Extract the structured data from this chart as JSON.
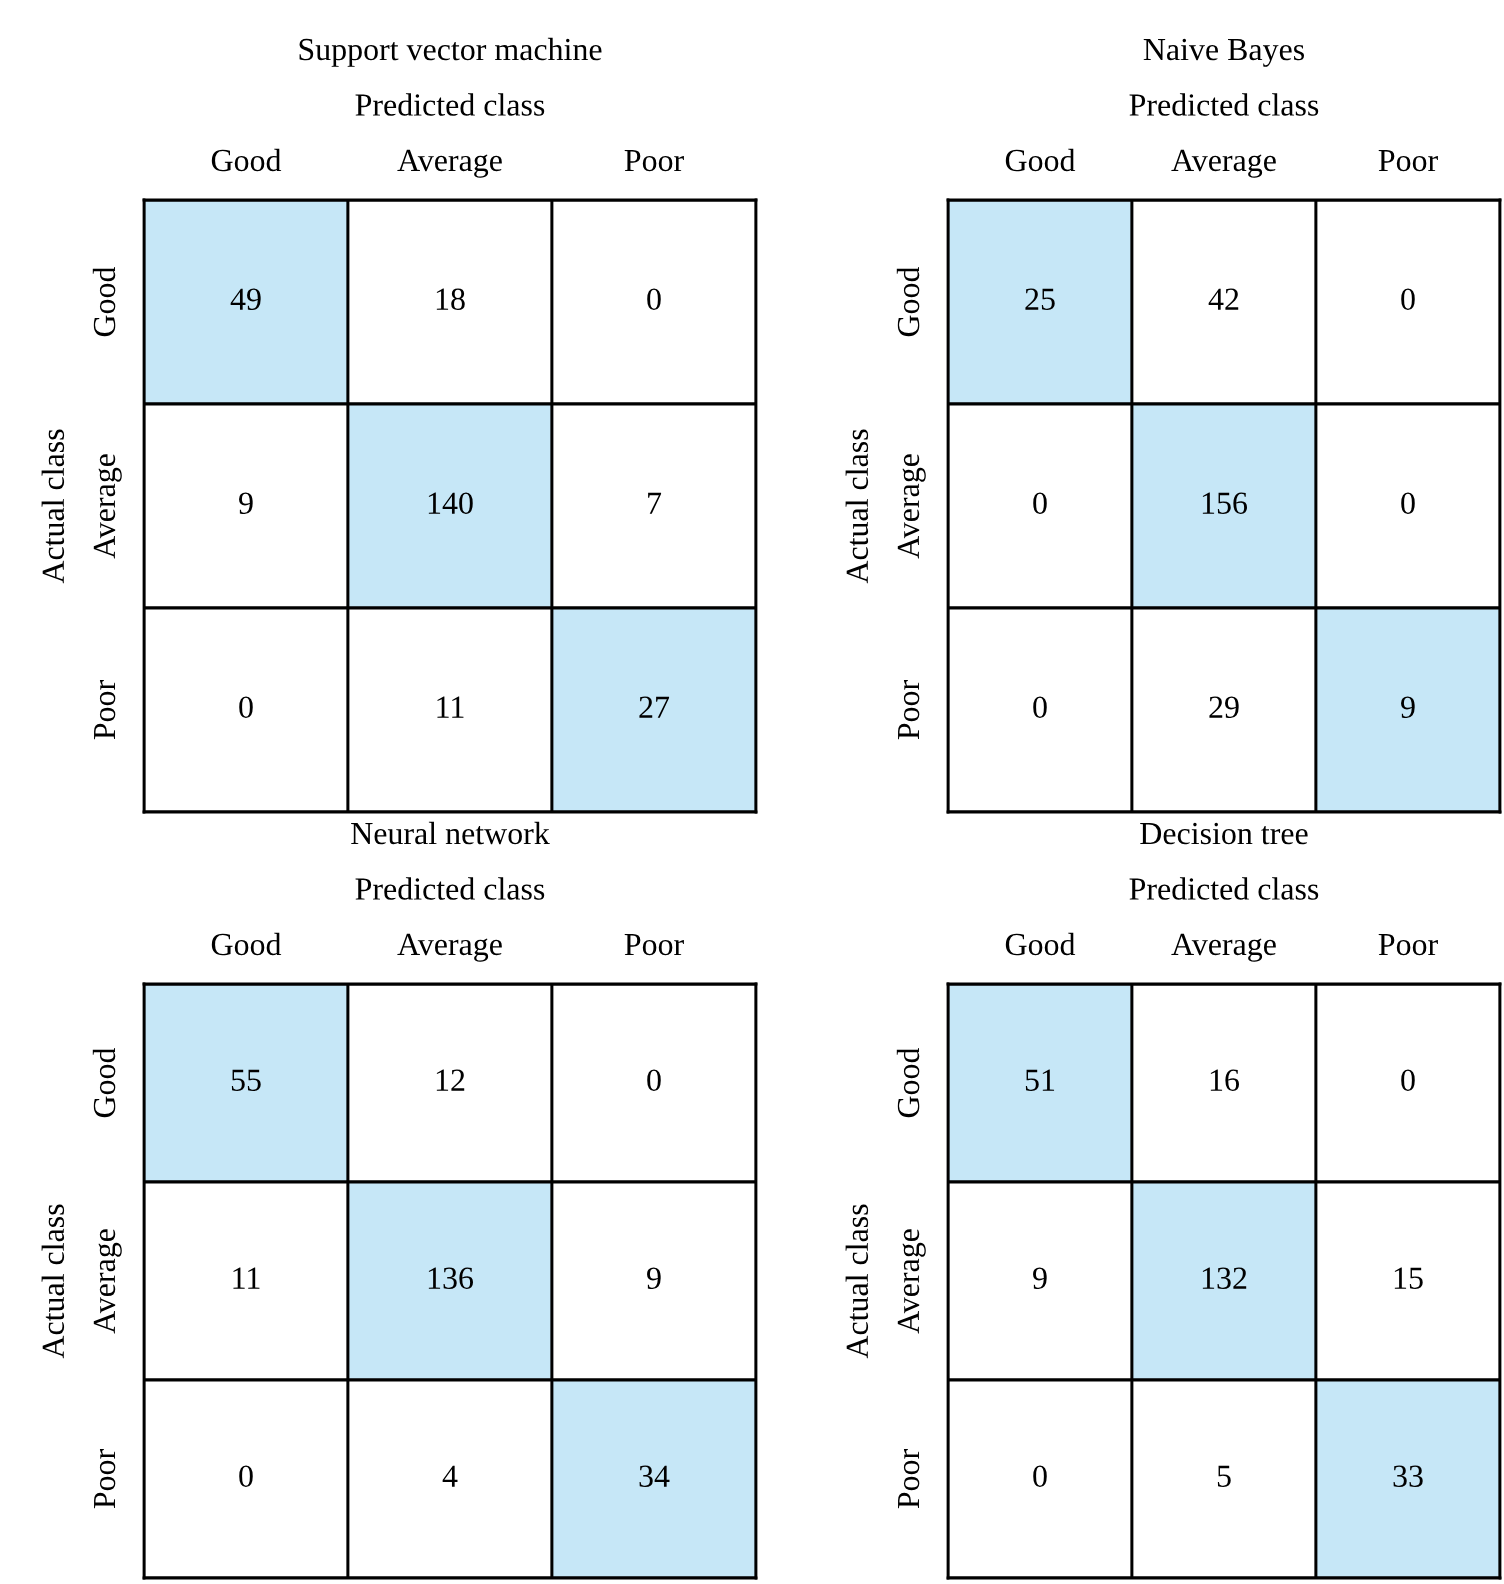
{
  "chart_data": [
    {
      "type": "heatmap",
      "title": "Support vector machine",
      "xlabel": "Predicted class",
      "ylabel": "Actual class",
      "categories": [
        "Good",
        "Average",
        "Poor"
      ],
      "y_categories": [
        "Good",
        "Average",
        "Poor"
      ],
      "cells": [
        [
          49,
          18,
          0
        ],
        [
          9,
          140,
          7
        ],
        [
          0,
          11,
          27
        ]
      ],
      "colors": [
        [
          "#c6e7f7",
          "#ffffff",
          "#ffffff"
        ],
        [
          "#ffffff",
          "#c6e7f7",
          "#ffffff"
        ],
        [
          "#ffffff",
          "#ffffff",
          "#c6e7f7"
        ]
      ],
      "data_labels": true
    },
    {
      "type": "heatmap",
      "title": "Naive Bayes",
      "xlabel": "Predicted class",
      "ylabel": "Actual class",
      "categories": [
        "Good",
        "Average",
        "Poor"
      ],
      "y_categories": [
        "Good",
        "Average",
        "Poor"
      ],
      "cells": [
        [
          25,
          42,
          0
        ],
        [
          0,
          156,
          0
        ],
        [
          0,
          29,
          9
        ]
      ],
      "colors": [
        [
          "#c6e7f7",
          "#ffffff",
          "#ffffff"
        ],
        [
          "#ffffff",
          "#c6e7f7",
          "#ffffff"
        ],
        [
          "#ffffff",
          "#ffffff",
          "#c6e7f7"
        ]
      ],
      "data_labels": true
    },
    {
      "type": "heatmap",
      "title": "Neural network",
      "xlabel": "Predicted class",
      "ylabel": "Actual class",
      "categories": [
        "Good",
        "Average",
        "Poor"
      ],
      "y_categories": [
        "Good",
        "Average",
        "Poor"
      ],
      "cells": [
        [
          55,
          12,
          0
        ],
        [
          11,
          136,
          9
        ],
        [
          0,
          4,
          34
        ]
      ],
      "colors": [
        [
          "#c6e7f7",
          "#ffffff",
          "#ffffff"
        ],
        [
          "#ffffff",
          "#c6e7f7",
          "#ffffff"
        ],
        [
          "#ffffff",
          "#ffffff",
          "#c6e7f7"
        ]
      ],
      "data_labels": true
    },
    {
      "type": "heatmap",
      "title": "Decision tree",
      "xlabel": "Predicted class",
      "ylabel": "Actual class",
      "categories": [
        "Good",
        "Average",
        "Poor"
      ],
      "y_categories": [
        "Good",
        "Average",
        "Poor"
      ],
      "cells": [
        [
          51,
          16,
          0
        ],
        [
          9,
          132,
          15
        ],
        [
          0,
          5,
          33
        ]
      ],
      "colors": [
        [
          "#c6e7f7",
          "#ffffff",
          "#ffffff"
        ],
        [
          "#ffffff",
          "#c6e7f7",
          "#ffffff"
        ],
        [
          "#ffffff",
          "#ffffff",
          "#c6e7f7"
        ]
      ],
      "data_labels": true
    }
  ]
}
